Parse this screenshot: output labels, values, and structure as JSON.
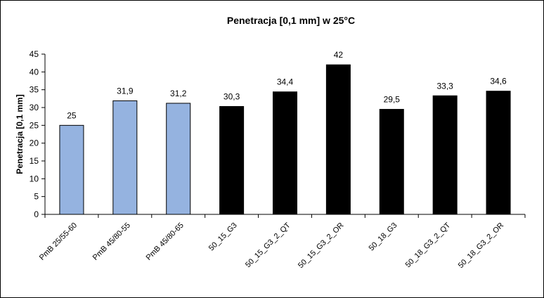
{
  "chart_data": {
    "type": "bar",
    "title": "Penetracja [0,1 mm] w 25°C",
    "xlabel": "",
    "ylabel": "Penetracja [0,1 mm]",
    "ylim": [
      0,
      45
    ],
    "yticks": [
      0,
      5,
      10,
      15,
      20,
      25,
      30,
      35,
      40,
      45
    ],
    "grid": false,
    "legend": "none",
    "categories": [
      "PmB 25/55-60",
      "PmB 45/80-55",
      "PmB 45/80-65",
      "50_15_G3",
      "50_15_G3_2_QT",
      "50_15_G3_2_OR",
      "50_18_G3",
      "50_18_G3_2_QT",
      "50_18_G3_2_OR"
    ],
    "values": [
      25,
      31.9,
      31.2,
      30.3,
      34.4,
      42,
      29.5,
      33.3,
      34.6
    ],
    "value_labels": [
      "25",
      "31,9",
      "31,2",
      "30,3",
      "34,4",
      "42",
      "29,5",
      "33,3",
      "34,6"
    ],
    "bar_colors": [
      "#95b3e0",
      "#95b3e0",
      "#95b3e0",
      "#000000",
      "#000000",
      "#000000",
      "#000000",
      "#000000",
      "#000000"
    ]
  }
}
